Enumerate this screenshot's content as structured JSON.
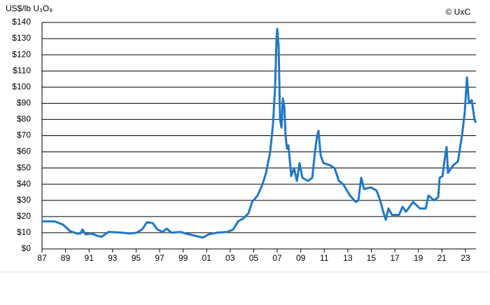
{
  "chart_data": {
    "type": "line",
    "y_label": "US$/lb U₃O₈",
    "credit": "© UxC",
    "x": [
      1987.0,
      1988.07,
      1988.79,
      1989.38,
      1989.98,
      1990.27,
      1990.45,
      1990.69,
      1991.17,
      1991.76,
      1992.06,
      1992.36,
      1992.65,
      1993.85,
      1994.44,
      1995.04,
      1995.51,
      1995.93,
      1996.4,
      1996.82,
      1997.24,
      1997.6,
      1998.01,
      1998.79,
      1999.2,
      1999.8,
      2000.39,
      2000.69,
      2001.17,
      2001.88,
      2002.77,
      2003.25,
      2003.67,
      2004.14,
      2004.56,
      2004.86,
      2005.33,
      2005.75,
      2006.05,
      2006.4,
      2006.64,
      2006.82,
      2006.94,
      2007.0,
      2007.12,
      2007.24,
      2007.36,
      2007.48,
      2007.6,
      2007.71,
      2007.83,
      2007.95,
      2008.19,
      2008.43,
      2008.67,
      2008.9,
      2009.14,
      2009.62,
      2009.98,
      2010.21,
      2010.39,
      2010.51,
      2010.69,
      2010.93,
      2011.4,
      2011.88,
      2012.24,
      2012.6,
      2013.19,
      2013.67,
      2013.9,
      2014.14,
      2014.38,
      2014.98,
      2015.45,
      2015.75,
      2016.05,
      2016.23,
      2016.46,
      2016.76,
      2017.36,
      2017.65,
      2017.95,
      2018.55,
      2019.14,
      2019.62,
      2019.86,
      2020.33,
      2020.69,
      2020.81,
      2021.05,
      2021.23,
      2021.4,
      2021.52,
      2022.0,
      2022.36,
      2022.71,
      2022.95,
      2023.13,
      2023.3,
      2023.54,
      2023.77,
      2023.9
    ],
    "series": [
      {
        "color": "#1f78c8",
        "values": [
          17,
          17,
          15,
          11,
          9.5,
          9.5,
          12,
          9,
          9.5,
          8,
          7.5,
          9,
          10.5,
          10,
          9.5,
          10,
          12,
          16.5,
          16,
          12,
          10.5,
          12.5,
          10,
          10.5,
          9.5,
          8.5,
          7.5,
          7,
          9,
          10,
          10.5,
          12,
          17,
          19,
          22,
          29,
          33,
          40,
          47,
          60,
          77,
          100,
          130,
          136,
          125,
          80,
          75,
          93,
          88,
          70,
          62,
          64,
          45,
          50,
          42,
          53,
          44,
          42,
          44,
          60,
          70,
          73,
          58,
          53,
          52,
          50,
          42,
          40,
          33,
          29,
          30,
          44,
          37,
          38,
          36,
          30,
          22,
          18,
          25,
          21,
          21,
          26,
          23,
          29,
          25,
          25,
          33,
          30,
          32,
          44,
          45,
          55,
          63,
          47,
          52,
          54,
          70,
          85,
          106,
          90,
          92,
          80,
          78
        ]
      }
    ],
    "xlim": [
      1987,
      2023.9
    ],
    "xticks": [
      {
        "value": 1987,
        "label": "87"
      },
      {
        "value": 1989,
        "label": "89"
      },
      {
        "value": 1991,
        "label": "91"
      },
      {
        "value": 1993,
        "label": "93"
      },
      {
        "value": 1995,
        "label": "95"
      },
      {
        "value": 1997,
        "label": "97"
      },
      {
        "value": 1999,
        "label": "99"
      },
      {
        "value": 2001,
        "label": "01"
      },
      {
        "value": 2003,
        "label": "03"
      },
      {
        "value": 2005,
        "label": "05"
      },
      {
        "value": 2007,
        "label": "07"
      },
      {
        "value": 2009,
        "label": "09"
      },
      {
        "value": 2011,
        "label": "11"
      },
      {
        "value": 2013,
        "label": "13"
      },
      {
        "value": 2015,
        "label": "15"
      },
      {
        "value": 2017,
        "label": "17"
      },
      {
        "value": 2019,
        "label": "19"
      },
      {
        "value": 2021,
        "label": "21"
      },
      {
        "value": 2023,
        "label": "23"
      }
    ],
    "ylim": [
      0,
      140
    ],
    "yticks": [
      {
        "value": 0,
        "label": "$0"
      },
      {
        "value": 10,
        "label": "$10"
      },
      {
        "value": 20,
        "label": "$20"
      },
      {
        "value": 30,
        "label": "$30"
      },
      {
        "value": 40,
        "label": "$40"
      },
      {
        "value": 50,
        "label": "$50"
      },
      {
        "value": 60,
        "label": "$60"
      },
      {
        "value": 70,
        "label": "$70"
      },
      {
        "value": 80,
        "label": "$80"
      },
      {
        "value": 90,
        "label": "$90"
      },
      {
        "value": 100,
        "label": "$100"
      },
      {
        "value": 110,
        "label": "$110"
      },
      {
        "value": 120,
        "label": "$120"
      },
      {
        "value": 130,
        "label": "$130"
      },
      {
        "value": 140,
        "label": "$140"
      }
    ],
    "grid": true
  }
}
